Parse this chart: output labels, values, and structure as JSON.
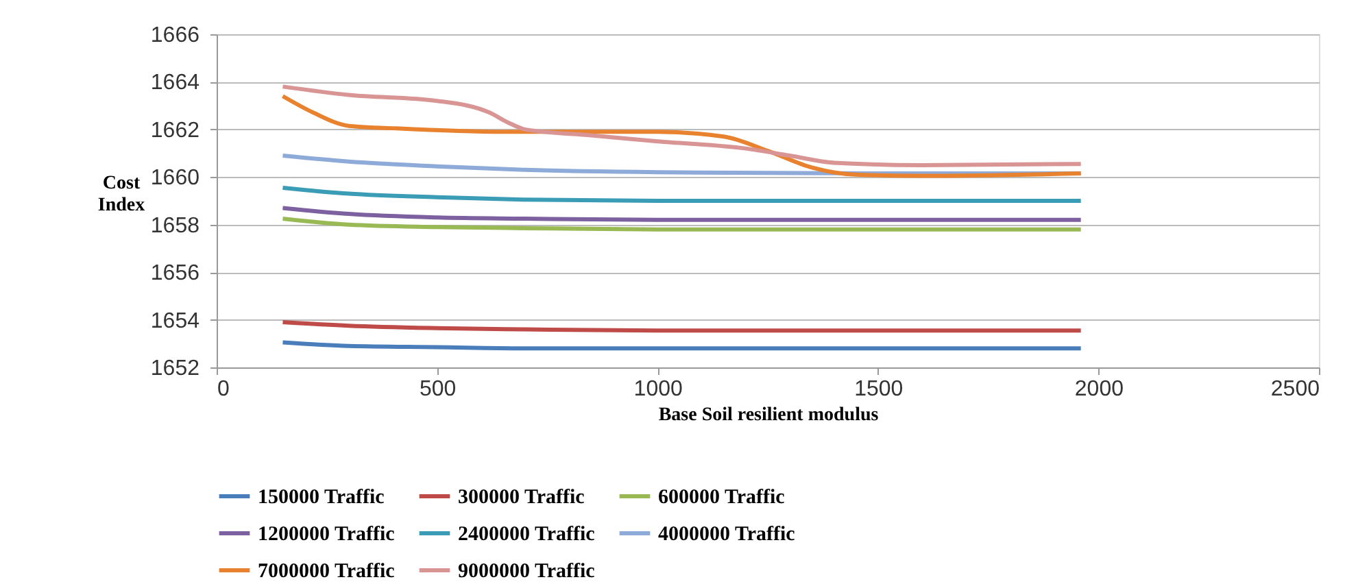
{
  "chart_data": {
    "type": "line",
    "xlabel": "Base Soil resilient modulus",
    "ylabel": "Cost Index",
    "xlim": [
      0,
      2500
    ],
    "xticks": [
      0,
      500,
      1000,
      1500,
      2000,
      2500
    ],
    "ylim": [
      1652,
      1666
    ],
    "yticks": [
      1652,
      1654,
      1656,
      1658,
      1660,
      1662,
      1664,
      1666
    ],
    "grid": "y",
    "legend": "bottom",
    "marker": "none",
    "line_style": "solid",
    "series": [
      {
        "name": "150000 Traffic",
        "color": "#4a7ebb",
        "x": [
          150,
          300,
          500,
          700,
          1000,
          1500,
          1960
        ],
        "values": [
          1653.05,
          1652.9,
          1652.85,
          1652.8,
          1652.8,
          1652.8,
          1652.8
        ]
      },
      {
        "name": "300000 Traffic",
        "color": "#be4b48",
        "x": [
          150,
          300,
          500,
          700,
          1000,
          1500,
          1960
        ],
        "values": [
          1653.9,
          1653.75,
          1653.65,
          1653.6,
          1653.55,
          1653.55,
          1653.55
        ]
      },
      {
        "name": "600000 Traffic",
        "color": "#98b954",
        "x": [
          150,
          300,
          500,
          700,
          1000,
          1500,
          1960
        ],
        "values": [
          1658.25,
          1658.0,
          1657.9,
          1657.85,
          1657.8,
          1657.8,
          1657.8
        ]
      },
      {
        "name": "1200000 Traffic",
        "color": "#7d60a0",
        "x": [
          150,
          300,
          500,
          700,
          1000,
          1500,
          1960
        ],
        "values": [
          1658.7,
          1658.45,
          1658.3,
          1658.25,
          1658.2,
          1658.2,
          1658.2
        ]
      },
      {
        "name": "2400000 Traffic",
        "color": "#3b9cb5",
        "x": [
          150,
          300,
          500,
          700,
          1000,
          1500,
          1960
        ],
        "values": [
          1659.55,
          1659.3,
          1659.15,
          1659.05,
          1659.0,
          1659.0,
          1659.0
        ]
      },
      {
        "name": "4000000 Traffic",
        "color": "#8eaad8",
        "x": [
          150,
          300,
          500,
          700,
          1000,
          1500,
          1960
        ],
        "values": [
          1660.9,
          1660.65,
          1660.45,
          1660.3,
          1660.2,
          1660.15,
          1660.15
        ]
      },
      {
        "name": "7000000 Traffic",
        "color": "#e8822f",
        "x": [
          150,
          220,
          300,
          400,
          650,
          800,
          1000,
          1150,
          1250,
          1350,
          1450,
          1600,
          1960
        ],
        "values": [
          1663.4,
          1662.7,
          1662.15,
          1662.05,
          1661.9,
          1661.9,
          1661.9,
          1661.7,
          1661.1,
          1660.4,
          1660.1,
          1660.05,
          1660.15
        ]
      },
      {
        "name": "9000000 Traffic",
        "color": "#d99594",
        "x": [
          150,
          300,
          500,
          620,
          660,
          700,
          850,
          1000,
          1200,
          1300,
          1400,
          1600,
          1960
        ],
        "values": [
          1663.8,
          1663.45,
          1663.2,
          1662.7,
          1662.3,
          1662.0,
          1661.75,
          1661.5,
          1661.2,
          1660.9,
          1660.6,
          1660.5,
          1660.55
        ]
      }
    ]
  }
}
